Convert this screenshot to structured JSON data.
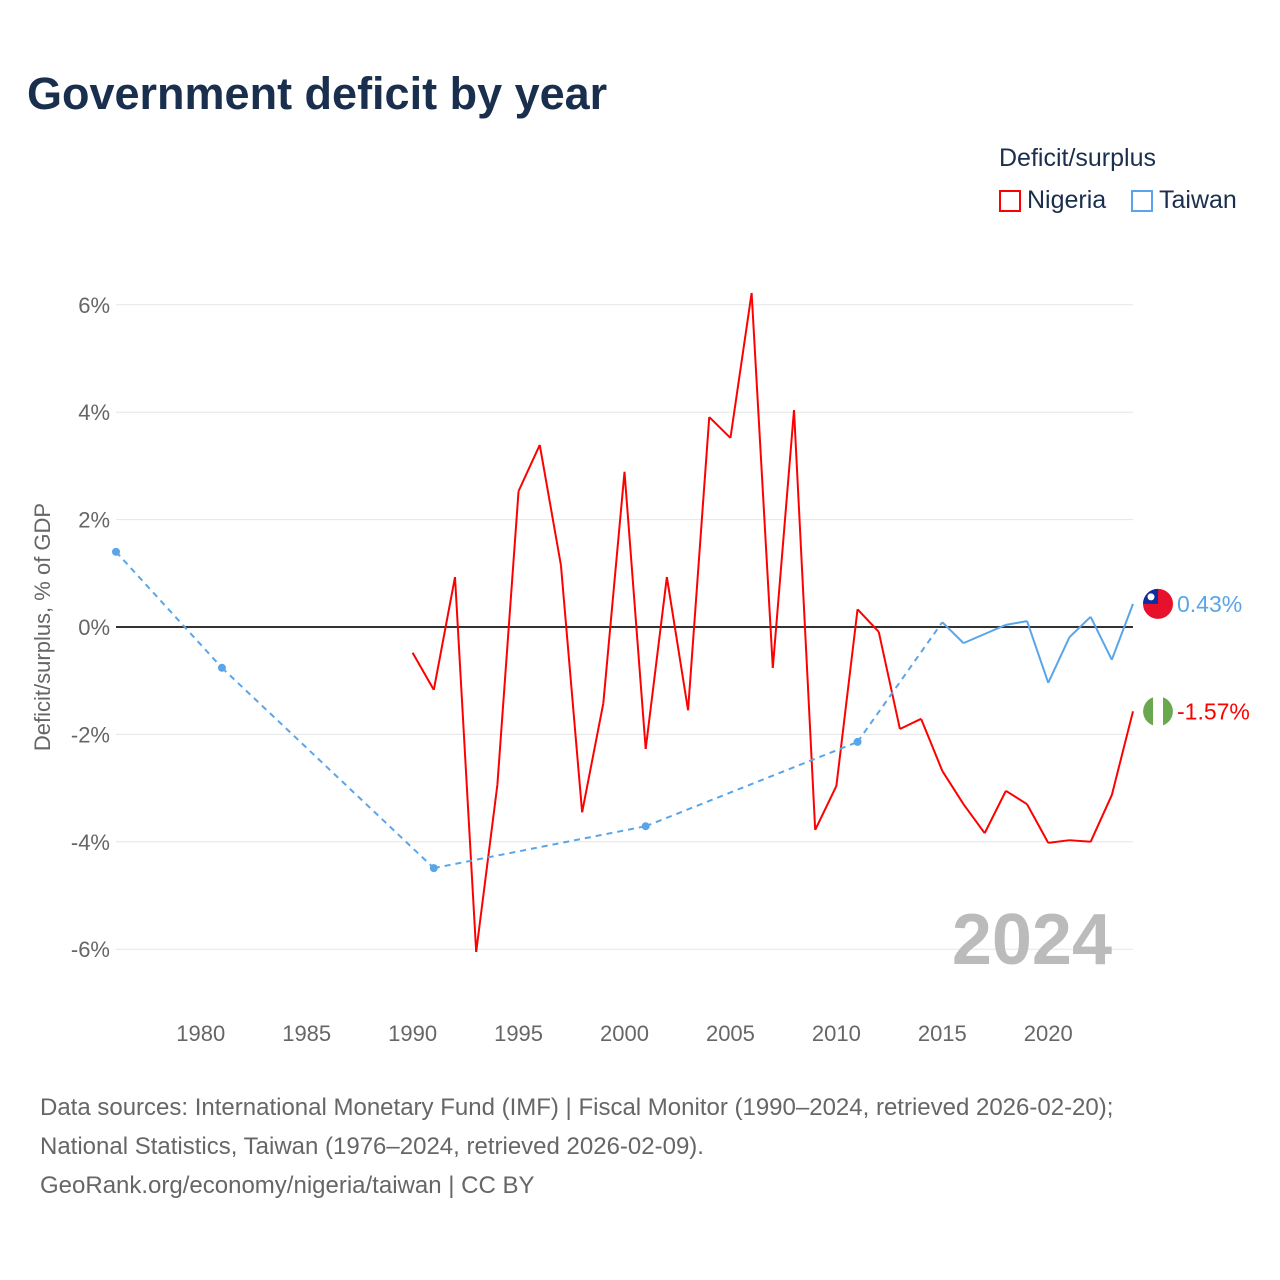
{
  "title": "Government deficit by year",
  "legend": {
    "title": "Deficit/surplus",
    "items": [
      {
        "name": "Nigeria",
        "color": "#ff0000"
      },
      {
        "name": "Taiwan",
        "color": "#5aa5ea"
      }
    ]
  },
  "footer": [
    "Data sources: International Monetary Fund (IMF) | Fiscal Monitor (1990–2024, retrieved 2026-02-20);",
    "National Statistics, Taiwan (1976–2024, retrieved 2026-02-09).",
    "GeoRank.org/economy/nigeria/taiwan | CC BY"
  ],
  "chart_data": {
    "type": "line",
    "title": "Government deficit by year",
    "ylabel": "Deficit/surplus, % of GDP",
    "xlim": [
      1976,
      2024
    ],
    "ylim": [
      -7,
      7
    ],
    "xticks": [
      1980,
      1985,
      1990,
      1995,
      2000,
      2005,
      2010,
      2015,
      2020
    ],
    "yticks": [
      6,
      4,
      2,
      0,
      -2,
      -4,
      -6
    ],
    "ytick_labels": [
      "6%",
      "4%",
      "2%",
      "0%",
      "-2%",
      "-4%",
      "-6%"
    ],
    "year_label": "2024",
    "series": [
      {
        "name": "Nigeria",
        "color": "#ff0000",
        "end_label": "-1.57%",
        "x": [
          1990,
          1991,
          1992,
          1993,
          1994,
          1995,
          1996,
          1997,
          1998,
          1999,
          2000,
          2001,
          2002,
          2003,
          2004,
          2005,
          2006,
          2007,
          2008,
          2009,
          2010,
          2011,
          2012,
          2013,
          2014,
          2015,
          2016,
          2017,
          2018,
          2019,
          2020,
          2021,
          2022,
          2023,
          2024
        ],
        "y": [
          -0.48,
          -1.17,
          0.93,
          -6.05,
          -2.94,
          2.53,
          3.39,
          1.15,
          -3.45,
          -1.42,
          2.89,
          -2.27,
          0.93,
          -1.55,
          3.91,
          3.52,
          6.22,
          -0.76,
          4.04,
          -3.78,
          -2.96,
          0.33,
          -0.09,
          -1.9,
          -1.71,
          -2.68,
          -3.3,
          -3.84,
          -3.05,
          -3.3,
          -4.02,
          -3.97,
          -4.0,
          -3.13,
          -1.57
        ]
      },
      {
        "name": "Taiwan",
        "color": "#5aa5ea",
        "end_label": "0.43%",
        "x": [
          1976,
          1981,
          1991,
          2001,
          2011,
          2015,
          2016,
          2017,
          2018,
          2019,
          2020,
          2021,
          2022,
          2023,
          2024
        ],
        "y": [
          1.4,
          -0.76,
          -4.49,
          -3.71,
          -2.14,
          0.09,
          -0.3,
          -0.13,
          0.04,
          0.11,
          -1.04,
          -0.19,
          0.19,
          -0.61,
          0.43
        ]
      }
    ]
  }
}
